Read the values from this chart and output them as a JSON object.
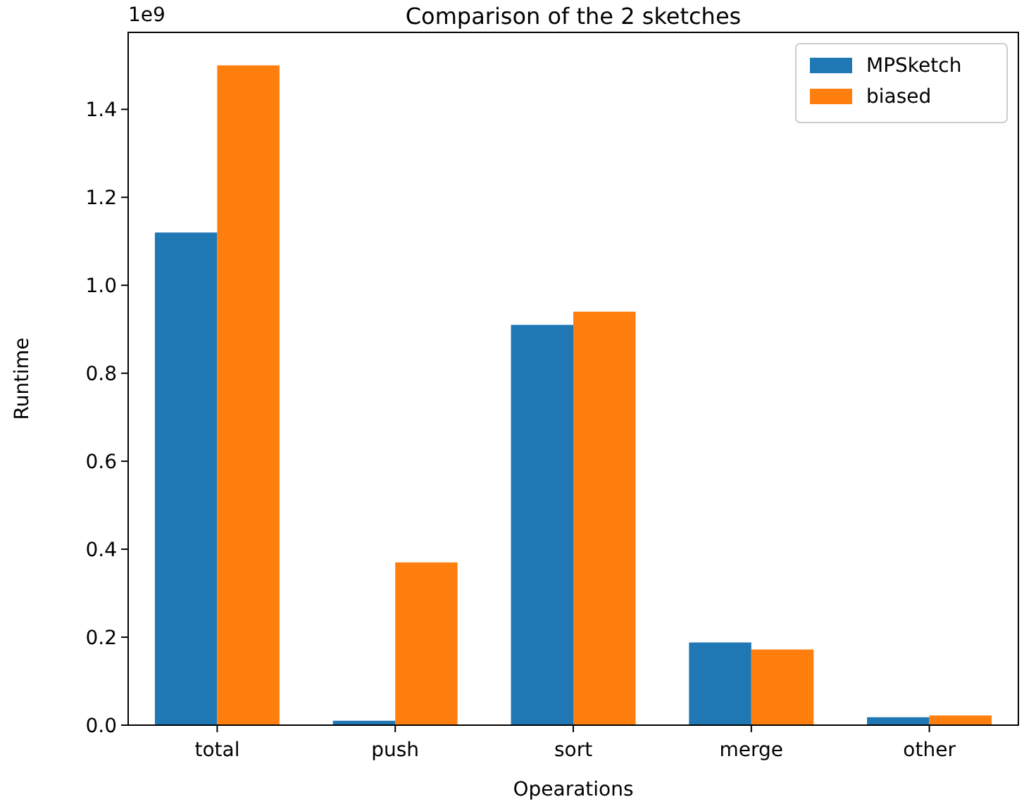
{
  "chart_data": {
    "type": "bar",
    "title": "Comparison of the 2 sketches",
    "xlabel": "Opearations",
    "ylabel": "Runtime",
    "categories": [
      "total",
      "push",
      "sort",
      "merge",
      "other"
    ],
    "series": [
      {
        "name": "MPSketch",
        "color": "#1f77b4",
        "values": [
          1.12,
          0.01,
          0.91,
          0.188,
          0.018
        ]
      },
      {
        "name": "biased",
        "color": "#ff7f0e",
        "values": [
          1.5,
          0.37,
          0.94,
          0.172,
          0.022
        ]
      }
    ],
    "ylim": [
      0,
      1.575
    ],
    "yticks": [
      {
        "value": 0,
        "label": "0.0"
      },
      0.2,
      0.4,
      0.6,
      0.8,
      {
        "value": 1,
        "label": "1.0"
      },
      1.2,
      1.4
    ],
    "annotations": [
      "1e9"
    ],
    "legend": "top right",
    "grid": false
  }
}
